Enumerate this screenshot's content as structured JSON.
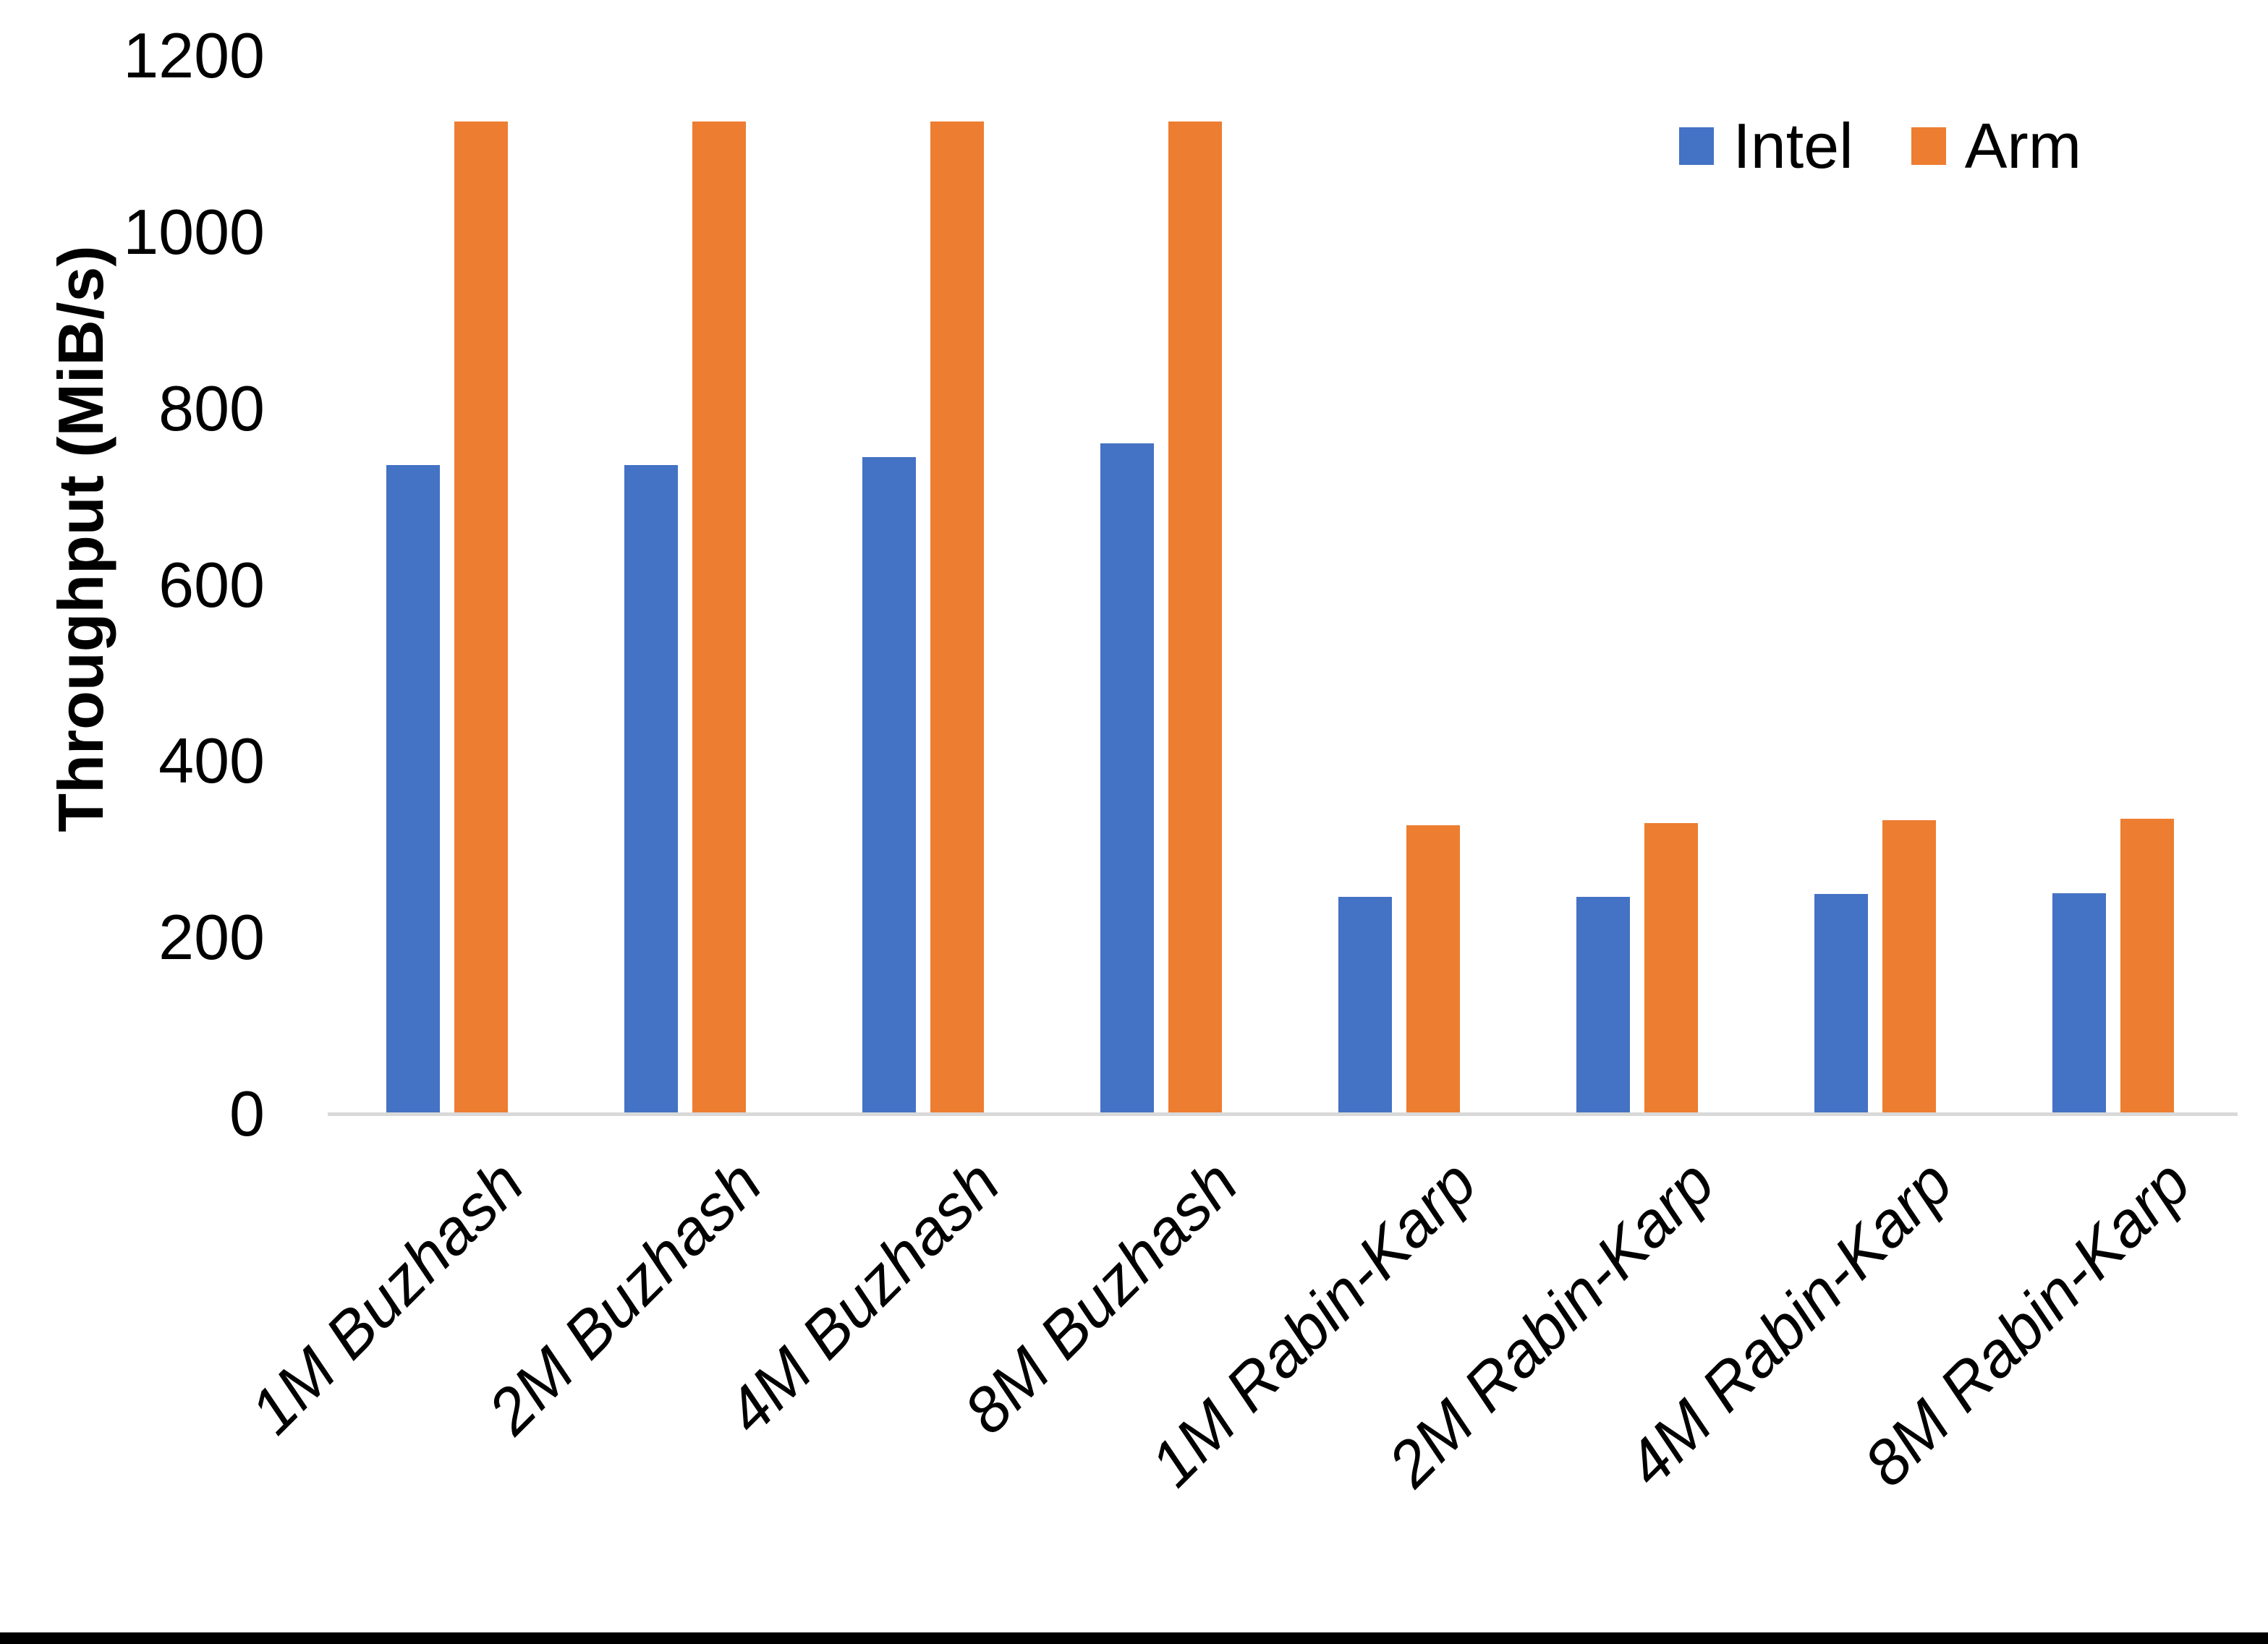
{
  "figure": {
    "background": "#FFFFFF",
    "bottom_bar_color": "#000000"
  },
  "chart_data": {
    "type": "bar",
    "title": "",
    "xlabel": "",
    "ylabel": "Throughput (MiB/s)",
    "ylim": [
      0,
      1200
    ],
    "yticks": [
      0,
      200,
      400,
      600,
      800,
      1000,
      1200
    ],
    "grid": false,
    "legend_position": "top-right",
    "axis_line_color": "#D9D9D9",
    "categories": [
      "1M Buzhash",
      "2M Buzhash",
      "4M Buzhash",
      "8M Buzhash",
      "1M Rabin-Karp",
      "2M Rabin-Karp",
      "4M Rabin-Karp",
      "8M Rabin-Karp"
    ],
    "series": [
      {
        "name": "Intel",
        "color": "#4472C4",
        "values": [
          736,
          736,
          745,
          760,
          246,
          246,
          249,
          250
        ]
      },
      {
        "name": "Arm",
        "color": "#ED7D31",
        "values": [
          1125,
          1125,
          1125,
          1125,
          327,
          330,
          333,
          335
        ]
      }
    ]
  }
}
